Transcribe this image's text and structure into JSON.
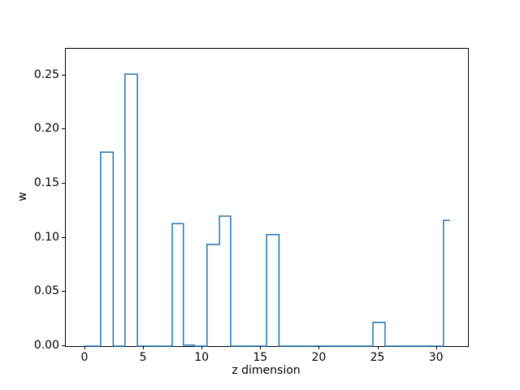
{
  "figure": {
    "background": "#ffffff",
    "frame_color": "#000000"
  },
  "chart_data": {
    "type": "step",
    "title": "",
    "xlabel": "z dimension",
    "ylabel": "w",
    "line_color": "#1f77b4",
    "line_width": 1.5,
    "grid": false,
    "legend": false,
    "xlim": [
      -1.66,
      32.66
    ],
    "ylim": [
      0,
      0.2745
    ],
    "x_ticks": [
      0,
      5,
      10,
      15,
      20,
      25,
      30
    ],
    "x_tick_labels": [
      "0",
      "5",
      "10",
      "15",
      "20",
      "25",
      "30"
    ],
    "y_ticks": [
      0.0,
      0.05,
      0.1,
      0.15,
      0.2,
      0.25
    ],
    "y_tick_labels": [
      "0.00",
      "0.05",
      "0.10",
      "0.15",
      "0.20",
      "0.25"
    ],
    "bars": [
      {
        "x_start": 1.31,
        "x_end": 2.38,
        "height": 0.179
      },
      {
        "x_start": 3.39,
        "x_end": 4.45,
        "height": 0.251
      },
      {
        "x_start": 7.42,
        "x_end": 8.37,
        "height": 0.113
      },
      {
        "x_start": 8.37,
        "x_end": 9.32,
        "height": 0.001
      },
      {
        "x_start": 10.39,
        "x_end": 11.45,
        "height": 0.094
      },
      {
        "x_start": 11.45,
        "x_end": 12.41,
        "height": 0.12
      },
      {
        "x_start": 15.47,
        "x_end": 16.53,
        "height": 0.103
      },
      {
        "x_start": 24.55,
        "x_end": 25.58,
        "height": 0.022
      },
      {
        "x_start": 30.57,
        "x_end": 31.12,
        "height": 0.116
      }
    ],
    "path_points": [
      [
        -0.1,
        0
      ],
      [
        1.31,
        0
      ],
      [
        1.31,
        0.179
      ],
      [
        2.38,
        0.179
      ],
      [
        2.38,
        0
      ],
      [
        3.39,
        0
      ],
      [
        3.39,
        0.251
      ],
      [
        4.45,
        0.251
      ],
      [
        4.45,
        0
      ],
      [
        7.42,
        0
      ],
      [
        7.42,
        0.113
      ],
      [
        8.37,
        0.113
      ],
      [
        8.37,
        0.001
      ],
      [
        9.32,
        0.001
      ],
      [
        9.32,
        0
      ],
      [
        10.39,
        0
      ],
      [
        10.39,
        0.094
      ],
      [
        11.45,
        0.094
      ],
      [
        11.45,
        0.12
      ],
      [
        12.41,
        0.12
      ],
      [
        12.41,
        0
      ],
      [
        15.47,
        0
      ],
      [
        15.47,
        0.103
      ],
      [
        16.53,
        0.103
      ],
      [
        16.53,
        0
      ],
      [
        24.55,
        0
      ],
      [
        24.55,
        0.022
      ],
      [
        25.58,
        0.022
      ],
      [
        25.58,
        0
      ],
      [
        30.57,
        0
      ],
      [
        30.57,
        0.116
      ],
      [
        31.12,
        0.116
      ]
    ]
  }
}
